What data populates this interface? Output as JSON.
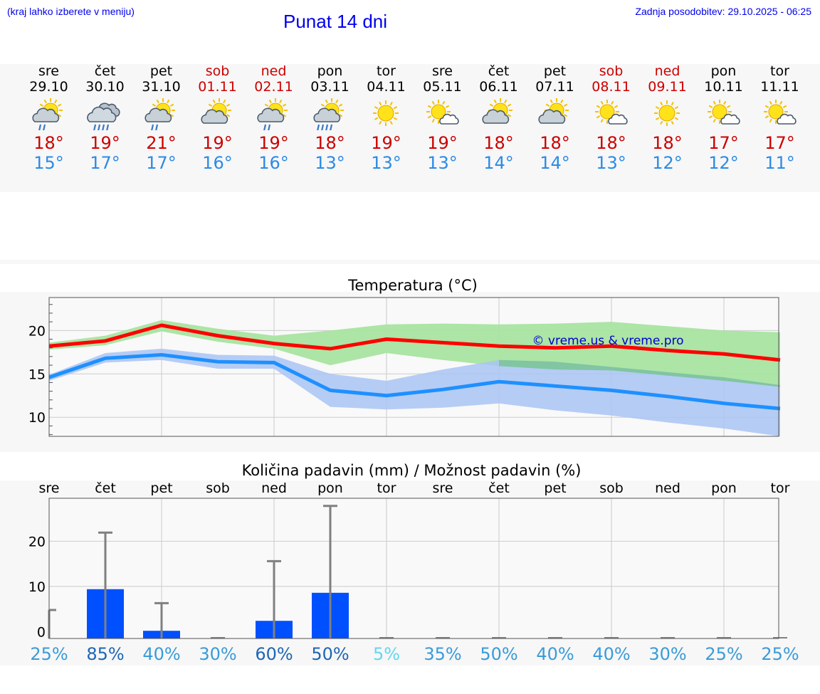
{
  "header": {
    "hint": "(kraj lahko izberete v meniju)",
    "title": "Punat 14 dni",
    "updated": "Zadnja posodobitev: 29.10.2025 - 06:25"
  },
  "forecast": {
    "days": [
      {
        "name": "sre",
        "date": "29.10",
        "weekend": false,
        "icon": "partly-cloudy-rain",
        "tmax": "18°",
        "tmin": "15°"
      },
      {
        "name": "čet",
        "date": "30.10",
        "weekend": false,
        "icon": "cloudy-rain",
        "tmax": "19°",
        "tmin": "17°"
      },
      {
        "name": "pet",
        "date": "31.10",
        "weekend": false,
        "icon": "partly-cloudy-rain",
        "tmax": "21°",
        "tmin": "17°"
      },
      {
        "name": "sob",
        "date": "01.11",
        "weekend": true,
        "icon": "partly-cloudy",
        "tmax": "19°",
        "tmin": "16°"
      },
      {
        "name": "ned",
        "date": "02.11",
        "weekend": true,
        "icon": "partly-cloudy-rain",
        "tmax": "19°",
        "tmin": "16°"
      },
      {
        "name": "pon",
        "date": "03.11",
        "weekend": false,
        "icon": "partly-cloudy-heavy-rain",
        "tmax": "18°",
        "tmin": "13°"
      },
      {
        "name": "tor",
        "date": "04.11",
        "weekend": false,
        "icon": "sun",
        "tmax": "19°",
        "tmin": "13°"
      },
      {
        "name": "sre",
        "date": "05.11",
        "weekend": false,
        "icon": "sun-small-cloud",
        "tmax": "19°",
        "tmin": "13°"
      },
      {
        "name": "čet",
        "date": "06.11",
        "weekend": false,
        "icon": "partly-cloudy",
        "tmax": "18°",
        "tmin": "14°"
      },
      {
        "name": "pet",
        "date": "07.11",
        "weekend": false,
        "icon": "partly-cloudy",
        "tmax": "18°",
        "tmin": "14°"
      },
      {
        "name": "sob",
        "date": "08.11",
        "weekend": true,
        "icon": "sun-small-cloud",
        "tmax": "18°",
        "tmin": "13°"
      },
      {
        "name": "ned",
        "date": "09.11",
        "weekend": true,
        "icon": "sun",
        "tmax": "18°",
        "tmin": "12°"
      },
      {
        "name": "pon",
        "date": "10.11",
        "weekend": false,
        "icon": "sun-small-cloud",
        "tmax": "17°",
        "tmin": "12°"
      },
      {
        "name": "tor",
        "date": "11.11",
        "weekend": false,
        "icon": "sun-small-cloud",
        "tmax": "17°",
        "tmin": "11°"
      }
    ]
  },
  "colors": {
    "weekend": "#cc0000",
    "tmax": "#cc0000",
    "tmin": "#2a8be6",
    "max_line": "#ff0000",
    "min_line": "#1e90ff",
    "max_band": "#a8e4a0",
    "min_band": "#a9c4f5",
    "overlap_band": "#7cc49a",
    "bar": "#0050ff",
    "errbar": "#808080",
    "watermark": "#0000cc"
  },
  "chart_data": [
    {
      "type": "line",
      "title": "Temperatura (°C)",
      "watermark": "© vreme.us & vreme.pro",
      "ylim": [
        7.8,
        23.8
      ],
      "yticks": [
        10,
        15,
        20
      ],
      "x": [
        0,
        1,
        2,
        3,
        4,
        5,
        6,
        7,
        8,
        9,
        10,
        11,
        12,
        13
      ],
      "series": [
        {
          "name": "max",
          "values": [
            18.2,
            18.8,
            20.6,
            19.4,
            18.5,
            17.9,
            19.0,
            18.6,
            18.2,
            18.0,
            18.2,
            17.7,
            17.3,
            16.6
          ]
        },
        {
          "name": "min",
          "values": [
            14.6,
            16.8,
            17.2,
            16.4,
            16.3,
            13.1,
            12.5,
            13.2,
            14.1,
            13.6,
            13.1,
            12.4,
            11.6,
            11.0
          ]
        }
      ],
      "bands": [
        {
          "name": "max_range",
          "upper": [
            18.6,
            19.4,
            21.2,
            20.2,
            19.4,
            20.0,
            20.7,
            20.8,
            20.7,
            20.8,
            21.0,
            20.5,
            20.0,
            19.8
          ],
          "lower": [
            17.8,
            18.3,
            19.9,
            18.7,
            17.9,
            16.0,
            17.4,
            16.6,
            15.9,
            15.5,
            15.4,
            14.8,
            14.2,
            13.5
          ]
        },
        {
          "name": "min_range",
          "upper": [
            14.9,
            17.4,
            17.9,
            17.2,
            17.1,
            15.0,
            14.2,
            15.5,
            16.6,
            16.4,
            15.8,
            15.2,
            14.6,
            13.7
          ],
          "lower": [
            14.2,
            16.3,
            16.6,
            15.6,
            15.6,
            11.2,
            10.9,
            11.1,
            11.6,
            10.8,
            10.2,
            9.4,
            8.7,
            7.8
          ]
        }
      ]
    },
    {
      "type": "bar",
      "title": "Količina padavin (mm) / Možnost padavin (%)",
      "categories": [
        "sre",
        "čet",
        "pet",
        "sob",
        "ned",
        "pon",
        "tor",
        "sre",
        "čet",
        "pet",
        "sob",
        "ned",
        "pon",
        "tor"
      ],
      "ylim": [
        -1.5,
        29.5
      ],
      "yticks": [
        0,
        10,
        20
      ],
      "values": [
        0,
        9.4,
        0.2,
        0,
        2.4,
        8.6,
        0,
        0,
        0,
        0,
        0,
        0,
        0,
        0
      ],
      "error_max": [
        4.8,
        21.9,
        6.3,
        0,
        15.6,
        27.8,
        0,
        0,
        0,
        0,
        0,
        0,
        0,
        0
      ],
      "probability": [
        "25%",
        "85%",
        "40%",
        "30%",
        "60%",
        "50%",
        "5%",
        "35%",
        "50%",
        "40%",
        "40%",
        "30%",
        "25%",
        "25%"
      ],
      "probability_colors": [
        "#3a9bd8",
        "#1e66b5",
        "#3a9bd8",
        "#3a9bd8",
        "#1e66b5",
        "#1e66b5",
        "#66d6ee",
        "#3a9bd8",
        "#3a9bd8",
        "#3a9bd8",
        "#3a9bd8",
        "#3a9bd8",
        "#3a9bd8",
        "#3a9bd8"
      ]
    }
  ]
}
